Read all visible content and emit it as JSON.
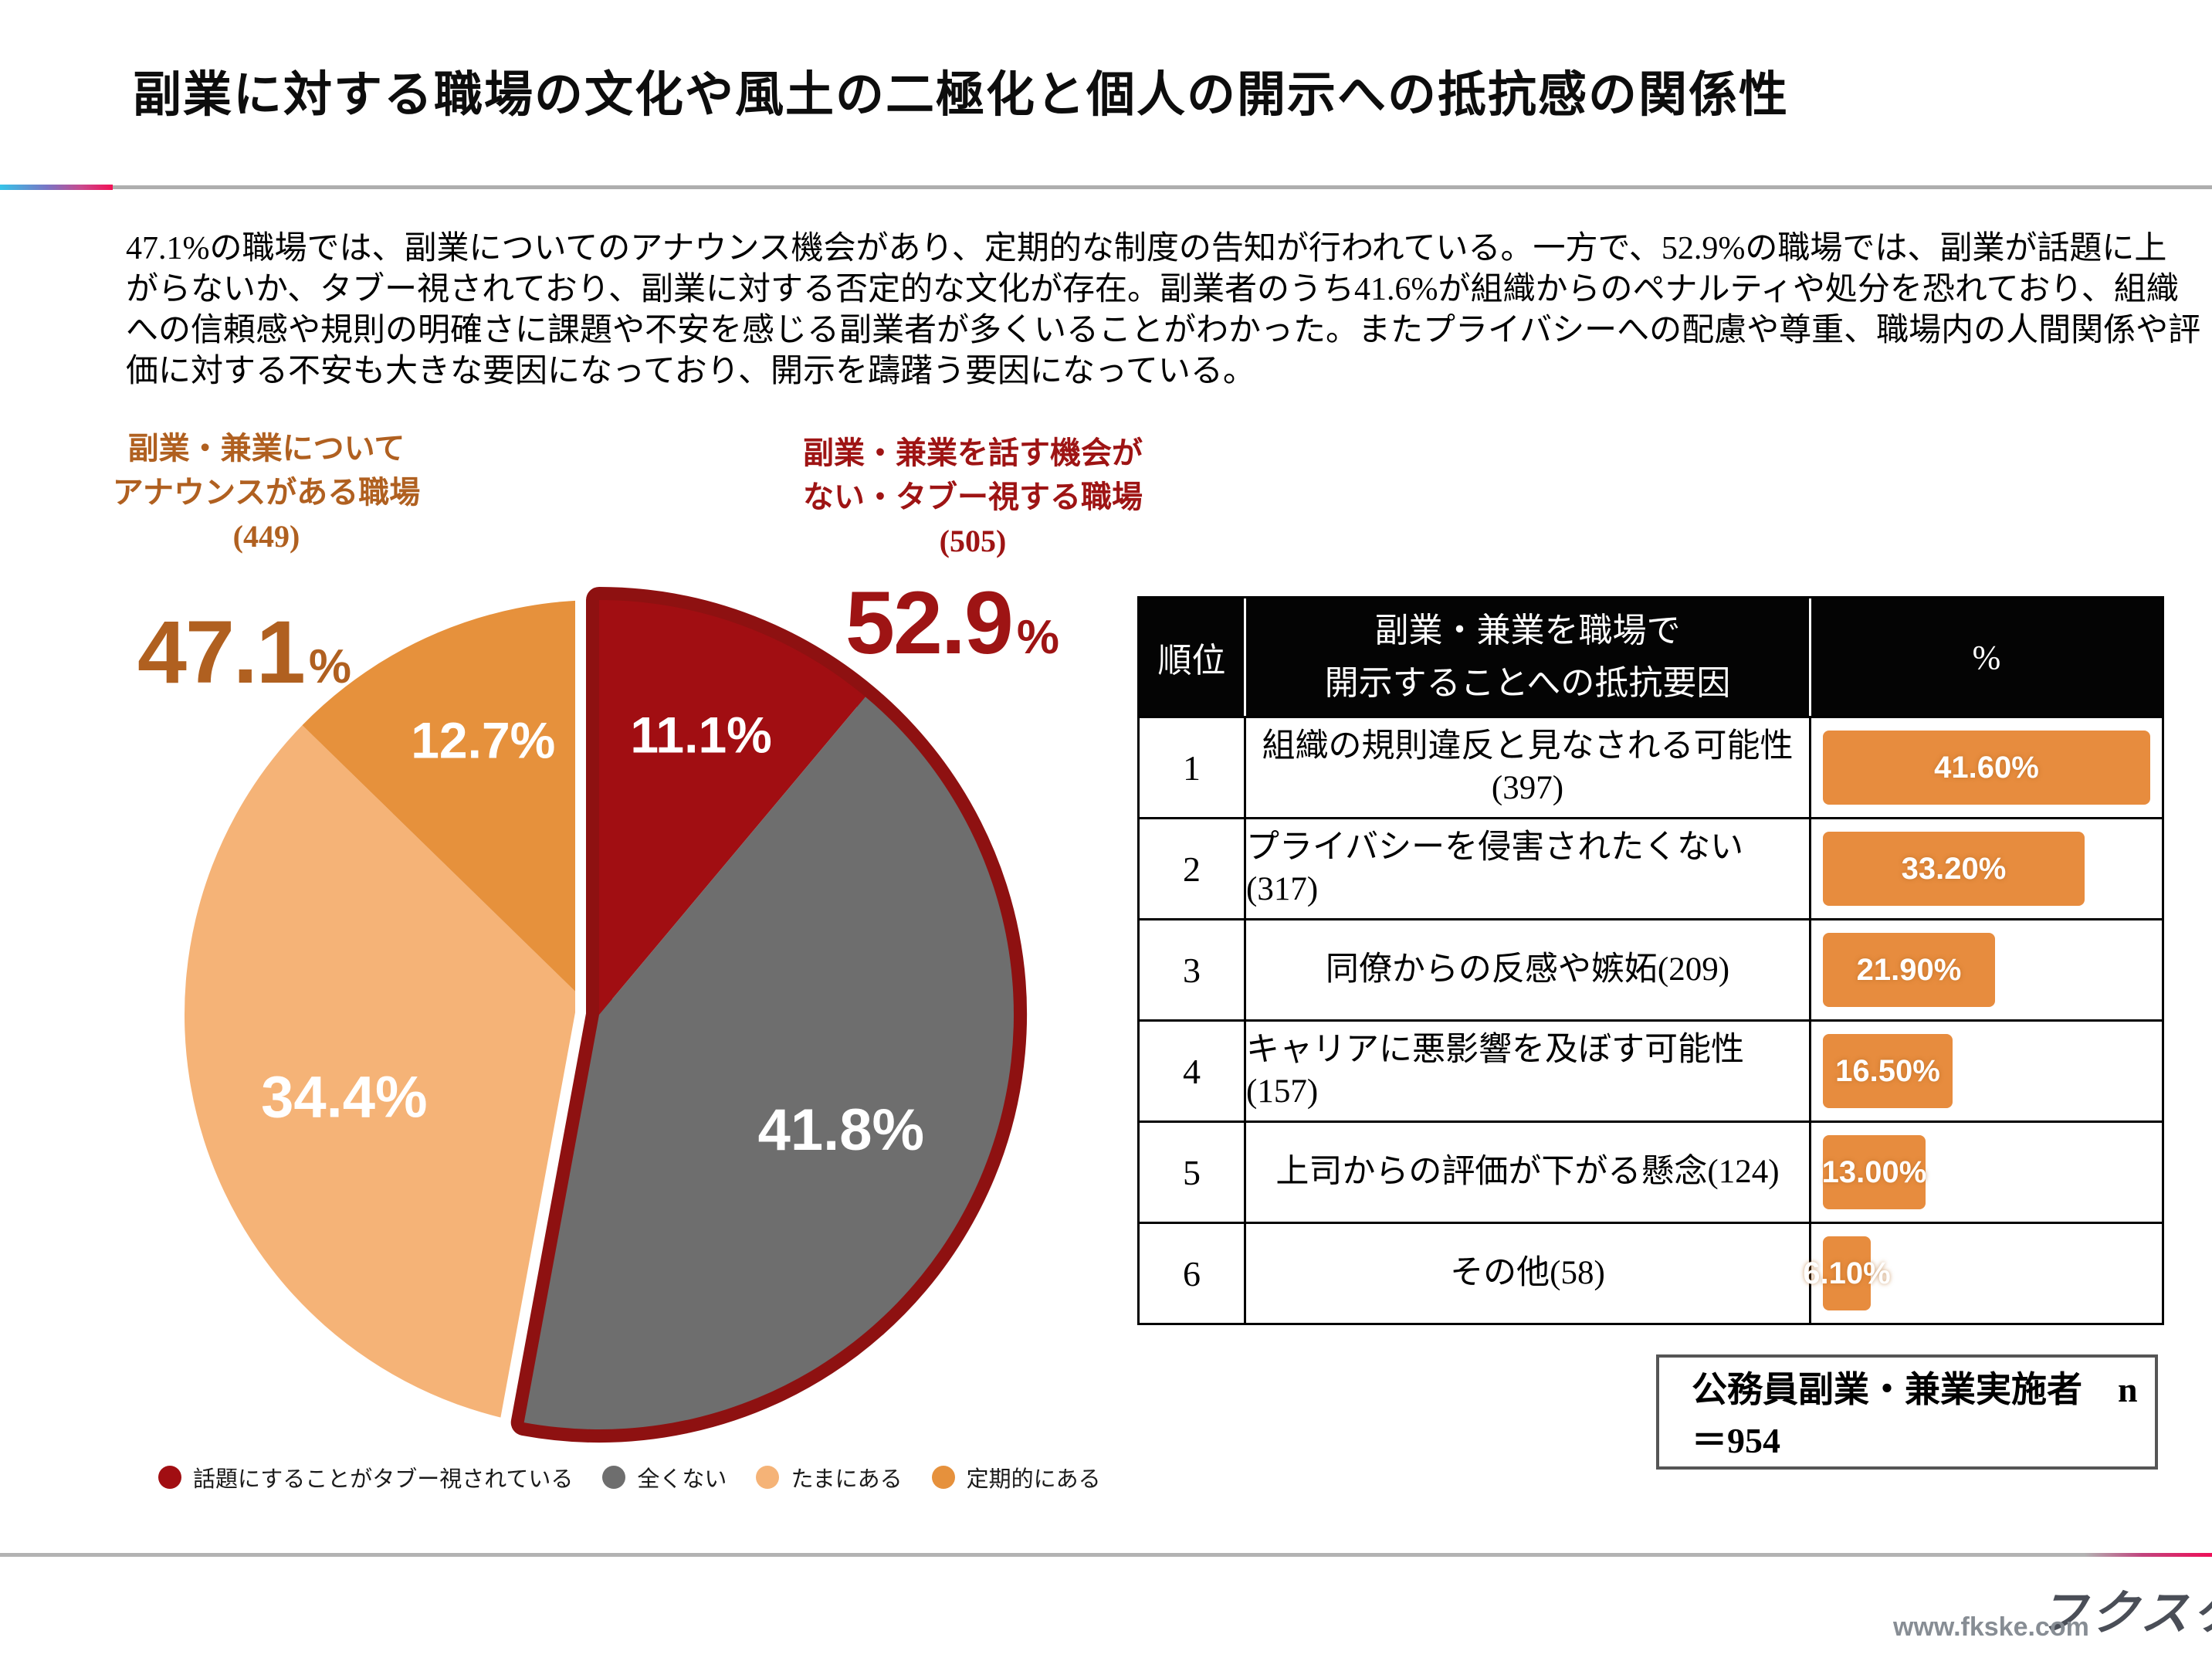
{
  "header": {
    "title": "副業に対する職場の文化や風土の二極化と個人の開示への抵抗感の関係性"
  },
  "intro_lines": [
    "47.1%の職場では、副業についてのアナウンス機会があり、定期的な制度の告知が行われている。一方で、52.9%の職場では、副業が話題に上",
    "がらないか、タブー視されており、副業に対する否定的な文化が存在。副業者のうち41.6%が組織からのペナルティや処分を恐れており、組織",
    "への信頼感や規則の明確さに課題や不安を感じる副業者が多くいることがわかった。またプライバシーへの配慮や尊重、職場内の人間関係や評",
    "価に対する不安も大きな要因になっており、開示を躊躇う要因になっている。"
  ],
  "pie_groups": [
    {
      "label_lines": [
        "副業・兼業について",
        "アナウンスがある職場",
        "(449)"
      ],
      "pct": "47.1",
      "pct_sign": "%",
      "color": "#b06020"
    },
    {
      "label_lines": [
        "副業・兼業を話す機会が",
        "ない・タブー視する職場",
        "(505)"
      ],
      "pct": "52.9",
      "pct_sign": "%",
      "color": "#9e1414"
    }
  ],
  "chart_data": [
    {
      "type": "pie",
      "start": "12 o'clock, clockwise",
      "slices": [
        {
          "label": "話題にすることがタブー視されている",
          "value": 11.1,
          "color": "#a10e12",
          "group": "taboo"
        },
        {
          "label": "全くない",
          "value": 41.8,
          "color": "#6e6e6e",
          "group": "taboo"
        },
        {
          "label": "たまにある",
          "value": 34.4,
          "color": "#f5b377",
          "group": "announce"
        },
        {
          "label": "定期的にある",
          "value": 12.7,
          "color": "#e6913c",
          "group": "announce"
        }
      ],
      "groups": [
        {
          "name": "副業・兼業についてアナウンスがある職場",
          "n": 449,
          "pct": 47.1
        },
        {
          "name": "副業・兼業を話す機会がない・タブー視する職場",
          "n": 505,
          "pct": 52.9
        }
      ],
      "outline_color": "#8e1111",
      "legend_position": "bottom"
    },
    {
      "type": "bar",
      "title": "副業・兼業を職場で開示することへの抵抗要因",
      "categories": [
        "組織の規則違反と見なされる可能性(397)",
        "プライバシーを侵害されたくない(317)",
        "同僚からの反感や嫉妬(209)",
        "キャリアに悪影響を及ぼす可能性(157)",
        "上司からの評価が下がる懸念(124)",
        "その他(58)"
      ],
      "values": [
        41.6,
        33.2,
        21.9,
        16.5,
        13.0,
        6.1
      ],
      "bar_color": "#e78c3e",
      "xlim": [
        0,
        45
      ]
    }
  ],
  "table": {
    "col_headers": {
      "rank": "順位",
      "factor_line1": "副業・兼業を職場で",
      "factor_line2": "開示することへの抵抗要因",
      "pct": "%"
    },
    "rows": [
      {
        "rank": "1",
        "factor_lines": [
          "組織の規則違反と見なされる可能性",
          "(397)"
        ],
        "value": 41.6,
        "bar_label": "41.60%"
      },
      {
        "rank": "2",
        "factor_lines": [
          "プライバシーを侵害されたくない(317)"
        ],
        "value": 33.2,
        "bar_label": "33.20%"
      },
      {
        "rank": "3",
        "factor_lines": [
          "同僚からの反感や嫉妬(209)"
        ],
        "value": 21.9,
        "bar_label": "21.90%"
      },
      {
        "rank": "4",
        "factor_lines": [
          "キャリアに悪影響を及ぼす可能性(157)"
        ],
        "value": 16.5,
        "bar_label": "16.50%"
      },
      {
        "rank": "5",
        "factor_lines": [
          "上司からの評価が下がる懸念(124)"
        ],
        "value": 13.0,
        "bar_label": "13.00%"
      },
      {
        "rank": "6",
        "factor_lines": [
          "その他(58)"
        ],
        "value": 6.1,
        "bar_label": "6.10%"
      }
    ]
  },
  "note": {
    "text": "公務員副業・兼業実施者　n＝954"
  },
  "footer": {
    "logo_text": "フクスケ",
    "url": "www.fkske.com"
  }
}
